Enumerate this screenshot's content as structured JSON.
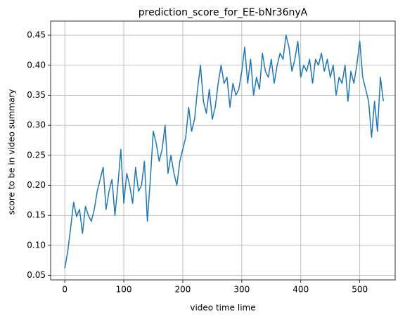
{
  "chart_data": {
    "type": "line",
    "title": "prediction_score_for_EE-bNr36nyA",
    "xlabel": "video time lime",
    "ylabel": "score to be in video summary",
    "x": [
      0,
      5,
      10,
      15,
      20,
      25,
      30,
      35,
      40,
      45,
      50,
      55,
      60,
      65,
      70,
      75,
      80,
      85,
      90,
      95,
      100,
      105,
      110,
      115,
      120,
      125,
      130,
      135,
      140,
      145,
      150,
      155,
      160,
      165,
      170,
      175,
      180,
      185,
      190,
      195,
      200,
      205,
      210,
      215,
      220,
      225,
      230,
      235,
      240,
      245,
      250,
      255,
      260,
      265,
      270,
      275,
      280,
      285,
      290,
      295,
      300,
      305,
      310,
      315,
      320,
      325,
      330,
      335,
      340,
      345,
      350,
      355,
      360,
      365,
      370,
      375,
      380,
      385,
      390,
      395,
      400,
      405,
      410,
      415,
      420,
      425,
      430,
      435,
      440,
      445,
      450,
      455,
      460,
      465,
      470,
      475,
      480,
      485,
      490,
      495,
      500,
      505,
      510,
      515,
      520,
      525,
      530,
      535,
      540
    ],
    "series": [
      {
        "name": "prediction_score",
        "color": "#1f77b4",
        "values": [
          0.062,
          0.09,
          0.13,
          0.172,
          0.148,
          0.16,
          0.12,
          0.165,
          0.15,
          0.14,
          0.16,
          0.19,
          0.21,
          0.23,
          0.16,
          0.19,
          0.21,
          0.15,
          0.2,
          0.26,
          0.17,
          0.22,
          0.2,
          0.17,
          0.23,
          0.19,
          0.2,
          0.24,
          0.14,
          0.21,
          0.29,
          0.27,
          0.24,
          0.26,
          0.3,
          0.22,
          0.25,
          0.22,
          0.2,
          0.24,
          0.26,
          0.28,
          0.33,
          0.29,
          0.31,
          0.36,
          0.4,
          0.34,
          0.32,
          0.36,
          0.31,
          0.33,
          0.37,
          0.4,
          0.37,
          0.38,
          0.33,
          0.37,
          0.35,
          0.36,
          0.39,
          0.43,
          0.37,
          0.41,
          0.35,
          0.38,
          0.36,
          0.42,
          0.39,
          0.38,
          0.41,
          0.37,
          0.4,
          0.42,
          0.41,
          0.45,
          0.43,
          0.39,
          0.41,
          0.44,
          0.38,
          0.4,
          0.39,
          0.41,
          0.37,
          0.41,
          0.4,
          0.42,
          0.39,
          0.41,
          0.38,
          0.4,
          0.35,
          0.38,
          0.37,
          0.4,
          0.34,
          0.39,
          0.37,
          0.4,
          0.44,
          0.38,
          0.36,
          0.34,
          0.28,
          0.34,
          0.29,
          0.38,
          0.34
        ]
      }
    ],
    "xlim": [
      -24,
      560
    ],
    "ylim": [
      0.0425,
      0.4735
    ],
    "xticks": [
      0,
      100,
      200,
      300,
      400,
      500
    ],
    "yticks": [
      0.05,
      {
        "value": 0.1,
        "label": "0.10"
      },
      0.15,
      {
        "value": 0.2,
        "label": "0.20"
      },
      0.25,
      {
        "value": 0.3,
        "label": "0.30"
      },
      0.35,
      {
        "value": 0.4,
        "label": "0.40"
      },
      0.45
    ],
    "grid": true
  }
}
